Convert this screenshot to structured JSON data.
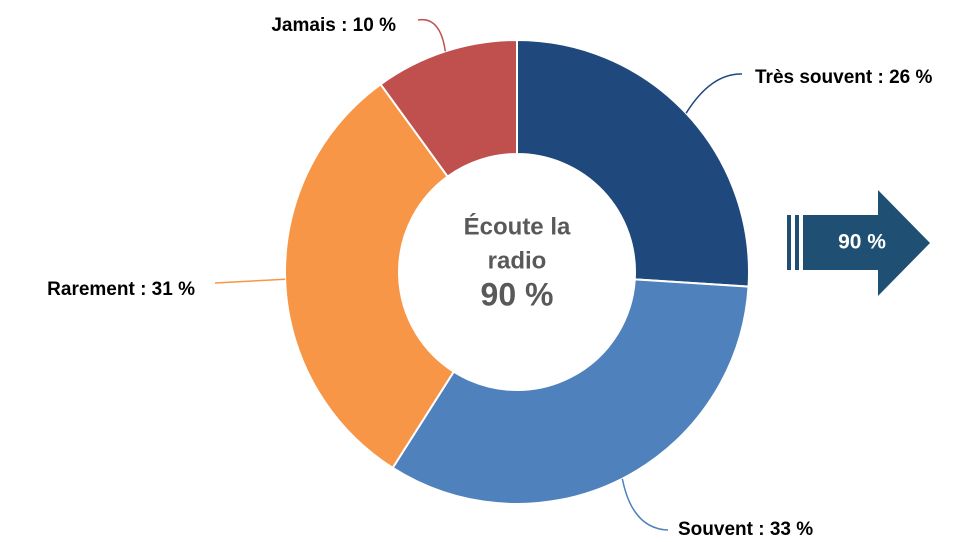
{
  "chart_data": {
    "type": "donut",
    "categories": [
      "Très souvent",
      "Souvent",
      "Rarement",
      "Jamais"
    ],
    "values": [
      26,
      33,
      31,
      10
    ],
    "value_labels": [
      "Très souvent : 26 %",
      "Souvent : 33 %",
      "Rarement : 31 %",
      "Jamais : 10 %"
    ],
    "colors": [
      "#1f497d",
      "#4f81bd",
      "#f79646",
      "#c0504d"
    ],
    "center_label": [
      "Écoute la",
      "radio"
    ],
    "center_value": "90 %",
    "arrow_label": "90 %",
    "arrow_color": "#1f5073"
  }
}
